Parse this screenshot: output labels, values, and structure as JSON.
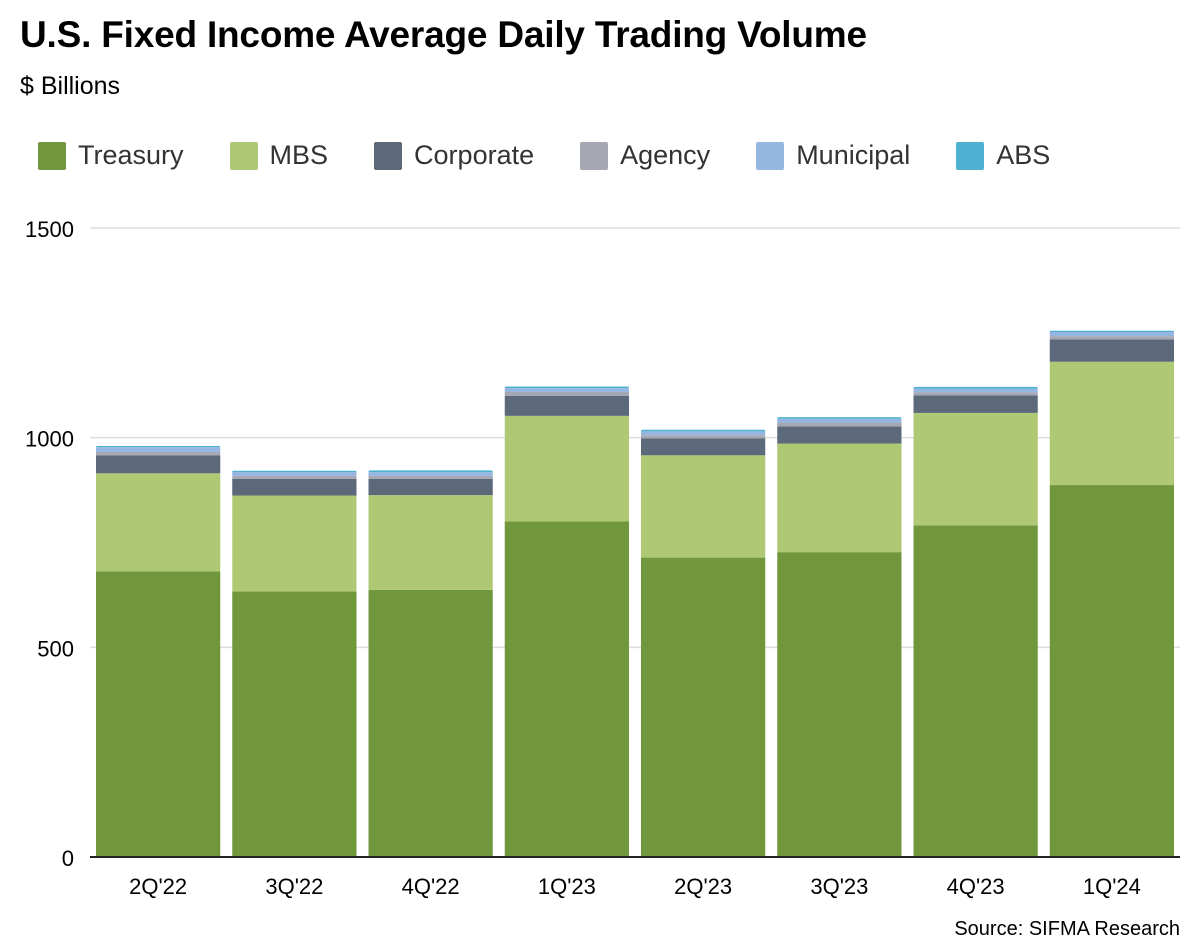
{
  "chart_data": {
    "type": "bar",
    "stacked": true,
    "title": "U.S. Fixed Income Average Daily Trading Volume",
    "subtitle": "$ Billions",
    "source": "Source: SIFMA Research",
    "categories": [
      "2Q'22",
      "3Q'22",
      "4Q'22",
      "1Q'23",
      "2Q'23",
      "3Q'23",
      "4Q'23",
      "1Q'24"
    ],
    "ylim": [
      0,
      1500
    ],
    "yticks": [
      "0",
      "500",
      "1000",
      "1500"
    ],
    "ytick_values": [
      0,
      500,
      1000,
      1500
    ],
    "grid": true,
    "legend_position": "top",
    "series": [
      {
        "name": "Treasury",
        "color": "#71973d",
        "values": [
          681,
          633,
          637,
          800,
          714,
          727,
          791,
          887
        ]
      },
      {
        "name": "MBS",
        "color": "#aec874",
        "values": [
          234,
          229,
          226,
          252,
          244,
          259,
          268,
          294
        ]
      },
      {
        "name": "Corporate",
        "color": "#5c697b",
        "values": [
          43,
          40,
          39,
          48,
          40,
          41,
          42,
          53
        ]
      },
      {
        "name": "Agency",
        "color": "#a5a7b2",
        "values": [
          8,
          7,
          7,
          9,
          8,
          9,
          7,
          8
        ]
      },
      {
        "name": "Municipal",
        "color": "#94b6e0",
        "values": [
          11,
          9,
          9,
          9,
          9,
          9,
          9,
          10
        ]
      },
      {
        "name": "ABS",
        "color": "#4eb1d1",
        "values": [
          3,
          3,
          4,
          4,
          4,
          4,
          4,
          3
        ]
      }
    ]
  }
}
